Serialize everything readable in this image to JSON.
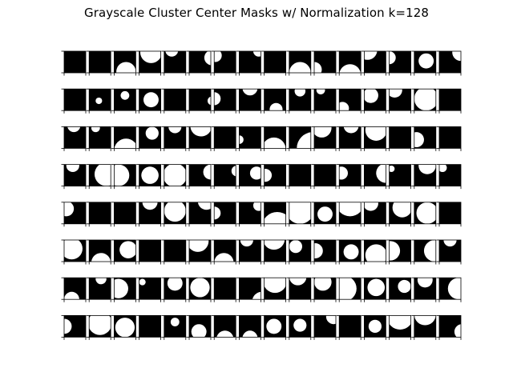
{
  "title": "Grayscale Cluster Center Masks w/ Normalization k=128",
  "chart_data": {
    "type": "heatmap",
    "title": "Grayscale Cluster Center Masks w/ Normalization k=128",
    "rows": 8,
    "cols": 16,
    "total_masks": 128,
    "colormap": [
      "#000000",
      "#ffffff"
    ],
    "tick_labels_shown": false,
    "masks": [
      [
        [],
        [],
        [
          [
            0.55,
            0.95,
            0.45
          ]
        ],
        [
          [
            0.55,
            0.05,
            0.5
          ]
        ],
        [
          [
            0.35,
            -0.05,
            0.3
          ]
        ],
        [
          [
            1.05,
            0.3,
            0.35
          ]
        ],
        [
          [
            0.05,
            0.2,
            0.3
          ]
        ],
        [
          [
            0.9,
            0.0,
            0.25
          ]
        ],
        [],
        [
          [
            0.5,
            1.0,
            0.5
          ]
        ],
        [
          [
            0.0,
            0.85,
            0.35
          ]
        ],
        [
          [
            0.5,
            1.1,
            0.5
          ]
        ],
        [
          [
            0.15,
            -0.05,
            0.45
          ]
        ],
        [
          [
            0.0,
            0.3,
            0.3
          ]
        ],
        [
          [
            0.55,
            0.45,
            0.35
          ]
        ],
        [
          [
            1.0,
            0.05,
            0.4
          ]
        ]
      ],
      [
        [],
        [
          [
            0.45,
            0.55,
            0.15
          ]
        ],
        [
          [
            0.5,
            0.3,
            0.2
          ]
        ],
        [
          [
            0.55,
            0.5,
            0.35
          ]
        ],
        [],
        [
          [
            1.05,
            0.55,
            0.2
          ]
        ],
        [
          [
            0.0,
            0.45,
            0.3
          ]
        ],
        [
          [
            0.5,
            -0.05,
            0.35
          ]
        ],
        [
          [
            0.55,
            0.95,
            0.3
          ]
        ],
        [
          [
            0.5,
            0.1,
            0.25
          ]
        ],
        [
          [
            0.3,
            0.05,
            0.2
          ]
        ],
        [
          [
            0.15,
            0.9,
            0.3
          ]
        ],
        [
          [
            0.3,
            0.3,
            0.35
          ]
        ],
        [
          [
            0.25,
            0.05,
            0.35
          ]
        ],
        [
          [
            0.55,
            0.45,
            0.55
          ]
        ],
        []
      ],
      [
        [
          [
            0.45,
            -0.05,
            0.3
          ]
        ],
        [
          [
            0.3,
            0.05,
            0.2
          ]
        ],
        [
          [
            0.55,
            1.1,
            0.55
          ]
        ],
        [
          [
            0.6,
            0.3,
            0.3
          ]
        ],
        [
          [
            0.5,
            0.0,
            0.3
          ]
        ],
        [
          [
            0.55,
            -0.05,
            0.5
          ]
        ],
        [],
        [
          [
            0.0,
            0.6,
            0.2
          ]
        ],
        [
          [
            0.45,
            1.05,
            0.55
          ]
        ],
        [
          [
            1.1,
            1.0,
            0.75
          ]
        ],
        [
          [
            0.35,
            0.05,
            0.45
          ]
        ],
        [
          [
            0.55,
            -0.05,
            0.35
          ]
        ],
        [
          [
            0.55,
            0.15,
            0.5
          ]
        ],
        [],
        [
          [
            0.1,
            0.6,
            0.35
          ]
        ],
        []
      ],
      [
        [
          [
            0.4,
            0.05,
            0.3
          ]
        ],
        [
          [
            0.8,
            0.45,
            0.55
          ]
        ],
        [
          [
            0.2,
            0.5,
            0.5
          ]
        ],
        [
          [
            0.5,
            0.5,
            0.4
          ]
        ],
        [
          [
            0.5,
            0.5,
            0.55
          ]
        ],
        [
          [
            1.0,
            0.35,
            0.35
          ]
        ],
        [
          [
            1.05,
            0.3,
            0.25
          ]
        ],
        [
          [
            0.8,
            0.4,
            0.3
          ]
        ],
        [
          [
            0.05,
            0.5,
            0.3
          ]
        ],
        [],
        [],
        [
          [
            0.1,
            0.4,
            0.3
          ]
        ],
        [
          [
            1.0,
            0.4,
            0.45
          ]
        ],
        [
          [
            0.1,
            0.2,
            0.15
          ]
        ],
        [
          [
            0.6,
            0.05,
            0.4
          ]
        ],
        [
          [
            0.15,
            0.15,
            0.2
          ]
        ]
      ],
      [
        [
          [
            0.1,
            0.3,
            0.35
          ]
        ],
        [],
        [],
        [
          [
            0.5,
            0.0,
            0.35
          ]
        ],
        [
          [
            0.5,
            0.4,
            0.5
          ]
        ],
        [
          [
            0.8,
            -0.05,
            0.4
          ]
        ],
        [
          [
            0.0,
            0.5,
            0.3
          ]
        ],
        [
          [
            0.9,
            0.15,
            0.25
          ]
        ],
        [
          [
            0.6,
            1.15,
            0.7
          ]
        ],
        [
          [
            0.5,
            0.35,
            0.65
          ]
        ],
        [
          [
            0.5,
            0.55,
            0.35
          ]
        ],
        [
          [
            0.5,
            0.0,
            0.65
          ]
        ],
        [
          [
            0.3,
            0.05,
            0.35
          ]
        ],
        [
          [
            0.6,
            0.25,
            0.45
          ]
        ],
        [
          [
            0.6,
            0.5,
            0.5
          ]
        ],
        []
      ],
      [
        [
          [
            0.35,
            0.4,
            0.5
          ]
        ],
        [
          [
            0.55,
            1.05,
            0.45
          ]
        ],
        [
          [
            0.65,
            0.45,
            0.4
          ]
        ],
        [],
        [],
        [
          [
            0.4,
            0.05,
            0.5
          ]
        ],
        [
          [
            0.45,
            1.05,
            0.45
          ]
        ],
        [
          [
            0.35,
            0.0,
            0.3
          ]
        ],
        [
          [
            0.45,
            -0.05,
            0.5
          ]
        ],
        [
          [
            0.3,
            0.3,
            0.3
          ]
        ],
        [
          [
            0.05,
            0.5,
            0.35
          ]
        ],
        [
          [
            0.55,
            0.55,
            0.35
          ]
        ],
        [
          [
            0.55,
            0.7,
            0.5
          ]
        ],
        [
          [
            0.05,
            0.5,
            0.45
          ]
        ],
        [
          [
            0.95,
            0.5,
            0.5
          ]
        ],
        [
          [
            0.5,
            0.0,
            0.3
          ]
        ]
      ],
      [
        [
          [
            0.35,
            1.0,
            0.35
          ]
        ],
        [
          [
            0.55,
            0.05,
            0.25
          ]
        ],
        [
          [
            0.2,
            0.5,
            0.45
          ]
        ],
        [
          [
            0.15,
            0.2,
            0.15
          ]
        ],
        [
          [
            0.5,
            0.25,
            0.35
          ]
        ],
        [
          [
            0.5,
            0.45,
            0.45
          ]
        ],
        [],
        [
          [
            1.05,
            1.1,
            0.45
          ]
        ],
        [
          [
            0.5,
            0.15,
            0.55
          ]
        ],
        [
          [
            0.4,
            -0.05,
            0.4
          ]
        ],
        [
          [
            0.4,
            0.2,
            0.4
          ]
        ],
        [
          [
            0.2,
            0.5,
            0.6
          ]
        ],
        [
          [
            0.55,
            0.45,
            0.4
          ]
        ],
        [
          [
            0.7,
            0.4,
            0.3
          ]
        ],
        [
          [
            0.5,
            0.1,
            0.35
          ]
        ],
        [
          [
            0.9,
            0.5,
            0.5
          ]
        ]
      ],
      [
        [
          [
            0.0,
            0.5,
            0.35
          ]
        ],
        [
          [
            0.5,
            0.35,
            0.55
          ]
        ],
        [
          [
            0.5,
            0.55,
            0.45
          ]
        ],
        [],
        [
          [
            0.5,
            0.3,
            0.2
          ]
        ],
        [
          [
            0.45,
            0.75,
            0.35
          ]
        ],
        [
          [
            0.5,
            1.1,
            0.4
          ]
        ],
        [
          [
            0.5,
            1.05,
            0.35
          ]
        ],
        [
          [
            0.45,
            0.5,
            0.35
          ]
        ],
        [
          [
            0.5,
            0.45,
            0.3
          ]
        ],
        [
          [
            0.9,
            0.05,
            0.35
          ]
        ],
        [],
        [
          [
            0.5,
            0.5,
            0.3
          ]
        ],
        [
          [
            0.5,
            0.05,
            0.6
          ]
        ],
        [
          [
            0.5,
            -0.05,
            0.5
          ]
        ],
        [
          [
            1.05,
            0.75,
            0.35
          ]
        ]
      ]
    ]
  }
}
